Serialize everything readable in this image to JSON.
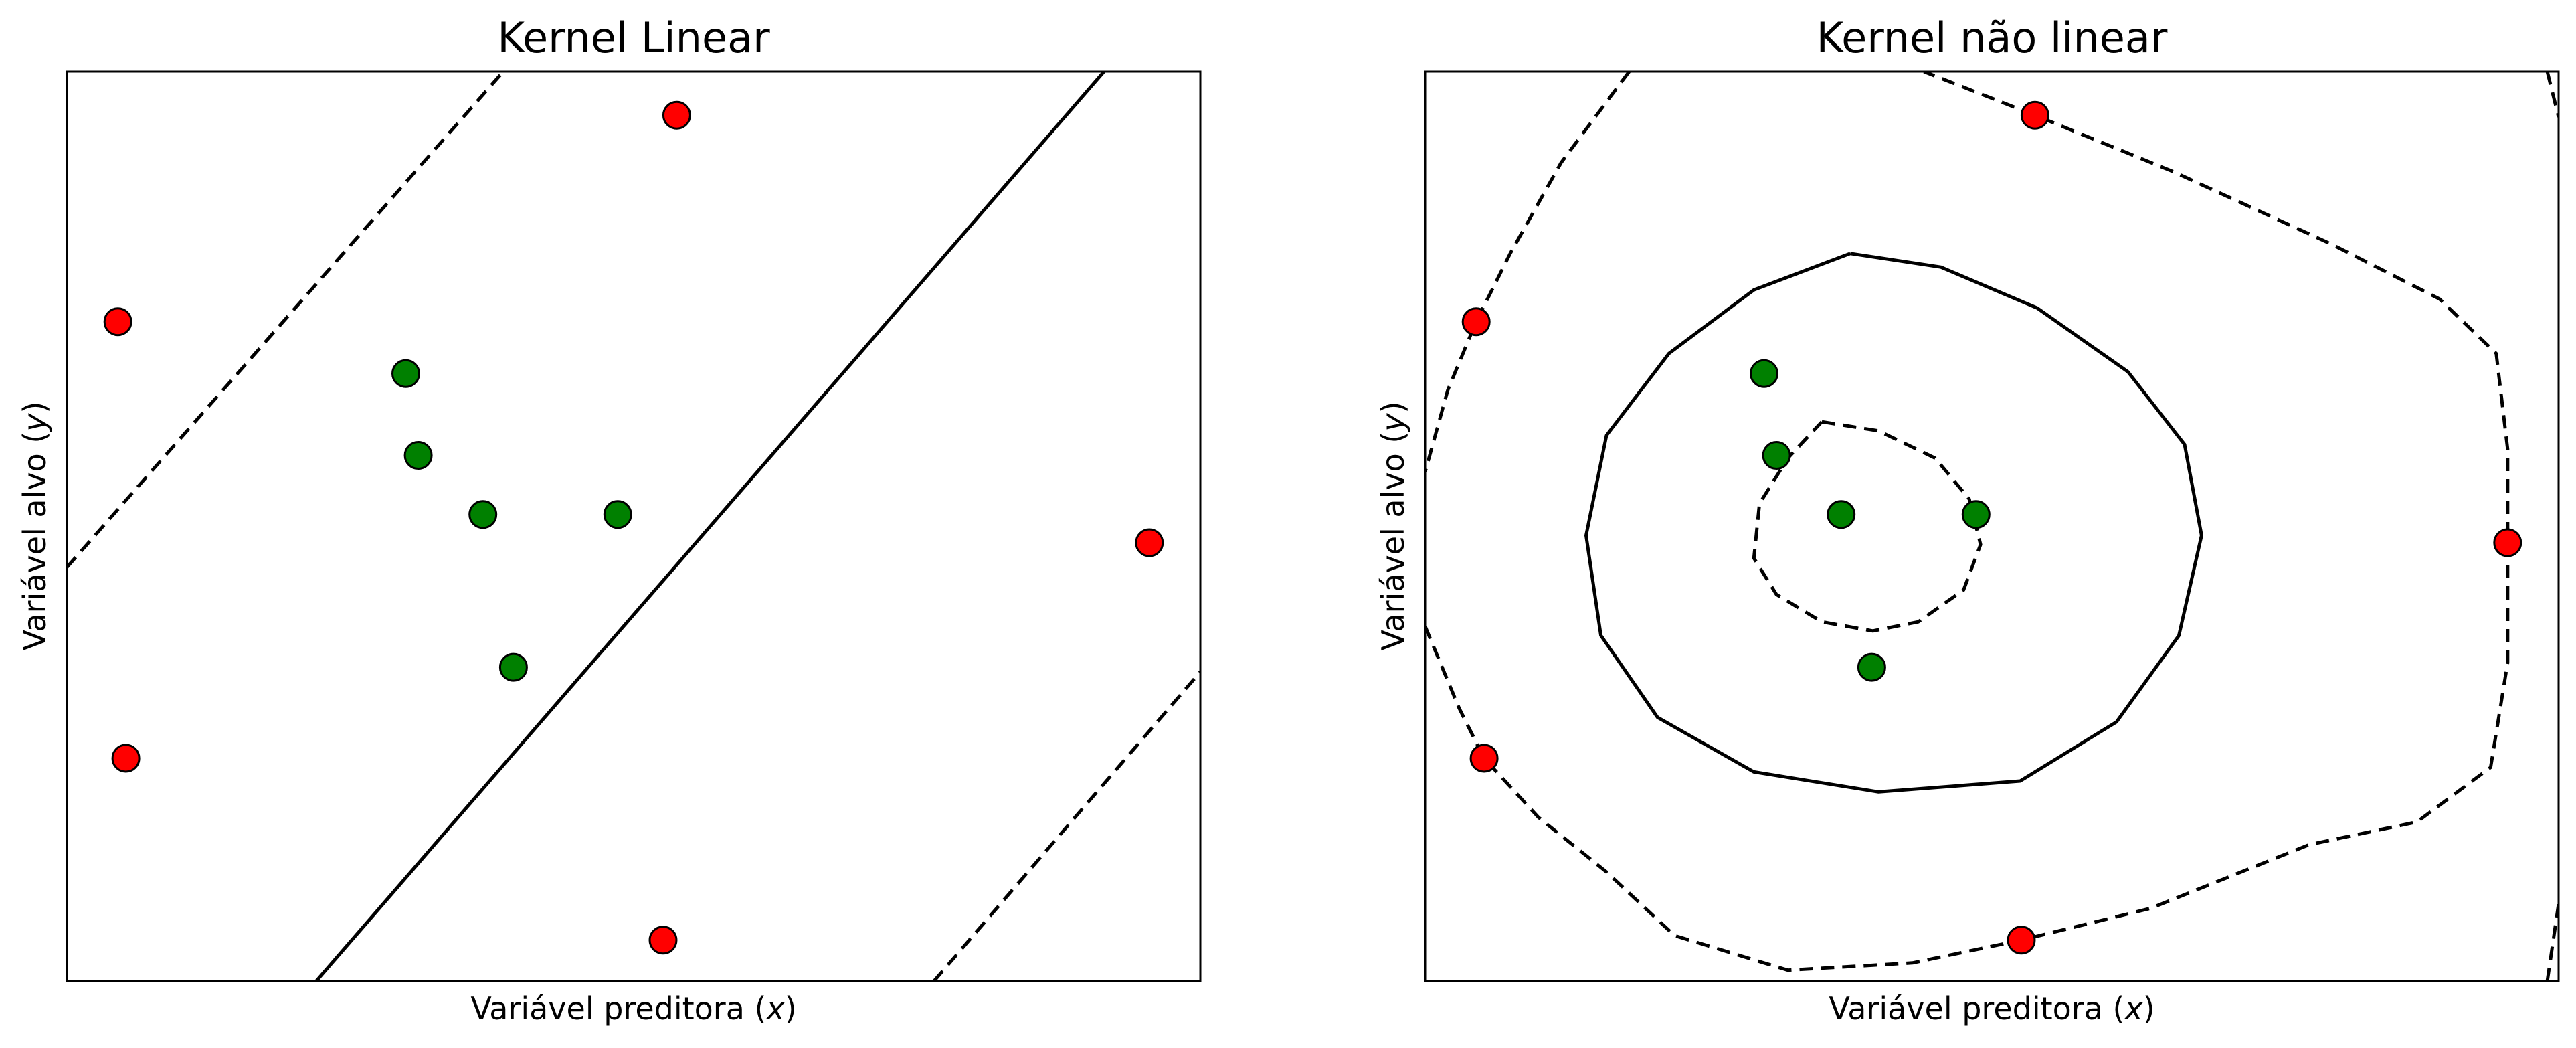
{
  "colors": {
    "red": "#ff0000",
    "green": "#008000",
    "edge": "#000000",
    "line": "#000000"
  },
  "chart_data": [
    {
      "type": "scatter",
      "title": "Kernel Linear",
      "xlabel_prefix": "Variável preditora (",
      "xlabel_var": "x",
      "xlabel_suffix": ")",
      "ylabel_prefix": "Variável alvo (",
      "ylabel_var": "y",
      "ylabel_suffix": ")",
      "xlim": [
        0,
        10
      ],
      "ylim": [
        0,
        10
      ],
      "xticks": [],
      "yticks": [],
      "grid": false,
      "series": [
        {
          "color": "red",
          "points": [
            [
              0.45,
              7.25
            ],
            [
              5.38,
              9.52
            ],
            [
              0.52,
              2.45
            ],
            [
              9.55,
              4.82
            ],
            [
              5.26,
              0.45
            ]
          ]
        },
        {
          "color": "green",
          "points": [
            [
              2.99,
              6.68
            ],
            [
              3.1,
              5.78
            ],
            [
              3.67,
              5.13
            ],
            [
              4.86,
              5.13
            ],
            [
              3.94,
              3.45
            ]
          ]
        }
      ],
      "decision_function": {
        "kind": "linear",
        "lines": [
          {
            "style": "solid",
            "points": [
              [
                2.2,
                0.0
              ],
              [
                9.15,
                10.0
              ]
            ]
          },
          {
            "style": "dashed",
            "points": [
              [
                0.0,
                4.55
              ],
              [
                3.85,
                10.0
              ]
            ]
          },
          {
            "style": "dashed",
            "points": [
              [
                7.65,
                0.0
              ],
              [
                10.0,
                3.4
              ]
            ]
          }
        ]
      }
    },
    {
      "type": "scatter",
      "title": "Kernel não linear",
      "xlabel_prefix": "Variável preditora (",
      "xlabel_var": "x",
      "xlabel_suffix": ")",
      "ylabel_prefix": "Variável alvo (",
      "ylabel_var": "y",
      "ylabel_suffix": ")",
      "xlim": [
        0,
        10
      ],
      "ylim": [
        0,
        10
      ],
      "xticks": [],
      "yticks": [],
      "grid": false,
      "series": [
        {
          "color": "red",
          "points": [
            [
              0.45,
              7.25
            ],
            [
              5.38,
              9.52
            ],
            [
              0.52,
              2.45
            ],
            [
              9.55,
              4.82
            ],
            [
              5.26,
              0.45
            ]
          ]
        },
        {
          "color": "green",
          "points": [
            [
              2.99,
              6.68
            ],
            [
              3.1,
              5.78
            ],
            [
              3.67,
              5.13
            ],
            [
              4.86,
              5.13
            ],
            [
              3.94,
              3.45
            ]
          ]
        }
      ],
      "decision_function": {
        "kind": "rbf",
        "lines": [
          {
            "style": "solid",
            "points": [
              [
                3.75,
                8.0
              ],
              [
                4.55,
                7.85
              ],
              [
                5.4,
                7.4
              ],
              [
                6.2,
                6.7
              ],
              [
                6.7,
                5.9
              ],
              [
                6.85,
                4.9
              ],
              [
                6.65,
                3.8
              ],
              [
                6.1,
                2.85
              ],
              [
                5.25,
                2.2
              ],
              [
                4.0,
                2.08
              ],
              [
                2.9,
                2.3
              ],
              [
                2.05,
                2.9
              ],
              [
                1.55,
                3.8
              ],
              [
                1.42,
                4.9
              ],
              [
                1.6,
                6.0
              ],
              [
                2.15,
                6.9
              ],
              [
                2.9,
                7.6
              ],
              [
                3.75,
                8.0
              ]
            ]
          },
          {
            "style": "dashed",
            "points": [
              [
                3.5,
                6.15
              ],
              [
                4.0,
                6.05
              ],
              [
                4.5,
                5.75
              ],
              [
                4.8,
                5.3
              ],
              [
                4.9,
                4.8
              ],
              [
                4.75,
                4.3
              ],
              [
                4.35,
                3.95
              ],
              [
                3.95,
                3.85
              ],
              [
                3.5,
                3.95
              ],
              [
                3.1,
                4.25
              ],
              [
                2.9,
                4.65
              ],
              [
                2.95,
                5.25
              ],
              [
                3.2,
                5.75
              ],
              [
                3.5,
                6.15
              ]
            ]
          },
          {
            "style": "dashed",
            "points": [
              [
                1.8,
                10.0
              ],
              [
                1.2,
                9.0
              ],
              [
                0.75,
                8.0
              ],
              [
                0.45,
                7.25
              ],
              [
                0.2,
                6.5
              ],
              [
                0.0,
                5.6
              ]
            ]
          },
          {
            "style": "dashed",
            "points": [
              [
                0.0,
                3.9
              ],
              [
                0.3,
                3.0
              ],
              [
                0.52,
                2.45
              ],
              [
                1.0,
                1.8
              ],
              [
                1.6,
                1.2
              ],
              [
                2.2,
                0.5
              ],
              [
                3.2,
                0.12
              ],
              [
                4.3,
                0.2
              ],
              [
                5.26,
                0.45
              ],
              [
                6.4,
                0.8
              ],
              [
                7.8,
                1.5
              ],
              [
                8.75,
                1.75
              ],
              [
                9.4,
                2.35
              ],
              [
                9.55,
                3.5
              ],
              [
                9.55,
                4.82
              ],
              [
                9.55,
                5.85
              ],
              [
                9.45,
                6.9
              ],
              [
                8.95,
                7.5
              ],
              [
                8.0,
                8.1
              ],
              [
                6.6,
                8.9
              ],
              [
                5.38,
                9.52
              ],
              [
                4.4,
                10.0
              ]
            ]
          },
          {
            "style": "dashed",
            "points": [
              [
                9.9,
                10.0
              ],
              [
                10.0,
                9.5
              ]
            ]
          },
          {
            "style": "dashed",
            "points": [
              [
                9.9,
                0.0
              ],
              [
                10.0,
                0.85
              ]
            ]
          }
        ]
      }
    }
  ]
}
